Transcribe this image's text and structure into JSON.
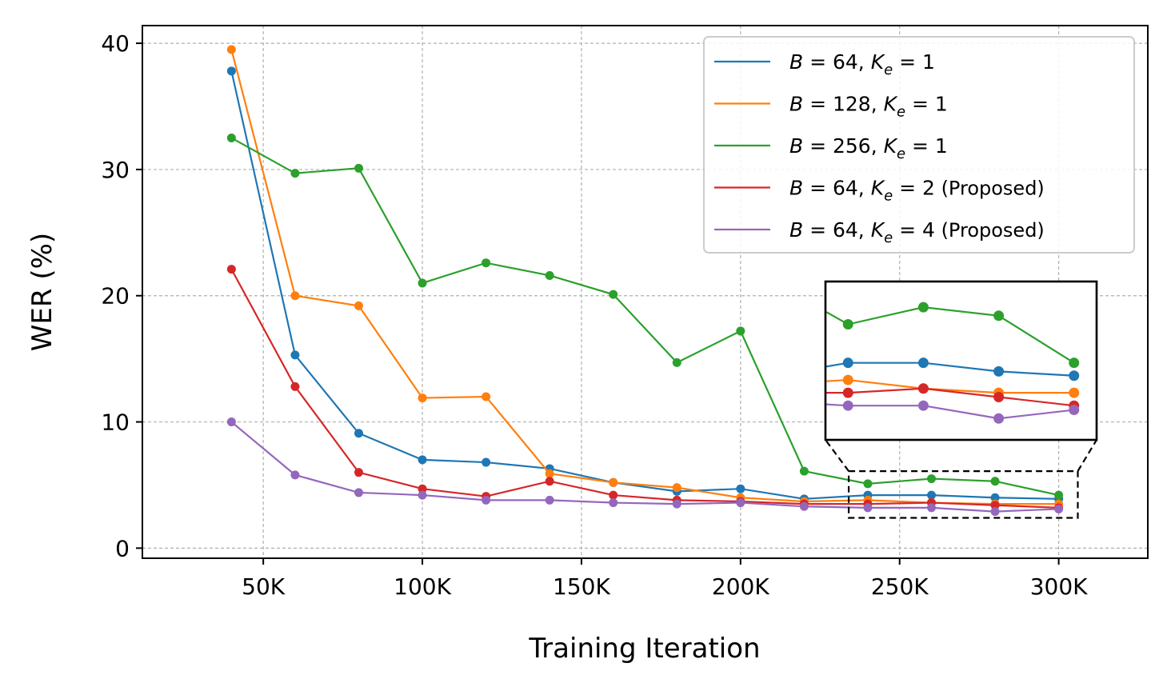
{
  "chart_data": {
    "type": "line",
    "title": "",
    "xlabel": "Training Iteration",
    "ylabel": "WER (%)",
    "xlim": [
      12000,
      328000
    ],
    "ylim": [
      -0.8,
      41.4
    ],
    "grid": true,
    "legend_position": "top-right",
    "xticks": [
      50000,
      100000,
      150000,
      200000,
      250000,
      300000
    ],
    "xtick_labels": [
      "50K",
      "100K",
      "150K",
      "200K",
      "250K",
      "300K"
    ],
    "yticks": [
      0,
      10,
      20,
      30,
      40
    ],
    "ytick_labels": [
      "0",
      "10",
      "20",
      "30",
      "40"
    ],
    "x": [
      40000,
      60000,
      80000,
      100000,
      120000,
      140000,
      160000,
      180000,
      200000,
      220000,
      240000,
      260000,
      280000,
      300000
    ],
    "series": [
      {
        "name": "B = 64, K_e = 1",
        "legend_parts": [
          "B",
          " = 64, ",
          "K",
          "e",
          " = 1",
          ""
        ],
        "color": "#1f77b4",
        "values": [
          37.8,
          15.3,
          9.1,
          7.0,
          6.8,
          6.3,
          5.2,
          4.5,
          4.7,
          3.9,
          4.2,
          4.2,
          4.0,
          3.9
        ]
      },
      {
        "name": "B = 128, K_e = 1",
        "legend_parts": [
          "B",
          " = 128, ",
          "K",
          "e",
          " = 1",
          ""
        ],
        "color": "#ff7f0e",
        "values": [
          39.5,
          20.0,
          19.2,
          11.9,
          12.0,
          5.9,
          5.2,
          4.8,
          4.0,
          3.7,
          3.8,
          3.6,
          3.5,
          3.5
        ]
      },
      {
        "name": "B = 256, K_e = 1",
        "legend_parts": [
          "B",
          " = 256, ",
          "K",
          "e",
          " = 1",
          ""
        ],
        "color": "#2ca02c",
        "values": [
          32.5,
          29.7,
          30.1,
          21.0,
          22.6,
          21.6,
          20.1,
          14.7,
          17.2,
          6.1,
          5.1,
          5.5,
          5.3,
          4.2
        ]
      },
      {
        "name": "B = 64, K_e = 2 (Proposed)",
        "legend_parts": [
          "B",
          " = 64, ",
          "K",
          "e",
          " = 2",
          " (Proposed)"
        ],
        "color": "#d62728",
        "values": [
          22.1,
          12.8,
          6.0,
          4.7,
          4.1,
          5.3,
          4.2,
          3.8,
          3.7,
          3.5,
          3.5,
          3.6,
          3.4,
          3.2
        ]
      },
      {
        "name": "B = 64, K_e = 4 (Proposed)",
        "legend_parts": [
          "B",
          " = 64, ",
          "K",
          "e",
          " = 4",
          " (Proposed)"
        ],
        "color": "#9467bd",
        "values": [
          10.0,
          5.8,
          4.4,
          4.2,
          3.8,
          3.8,
          3.6,
          3.5,
          3.6,
          3.3,
          3.2,
          3.2,
          2.9,
          3.1
        ]
      }
    ],
    "inset": {
      "x_range": [
        234000,
        306000
      ],
      "y_range": [
        2.4,
        6.1
      ]
    }
  }
}
